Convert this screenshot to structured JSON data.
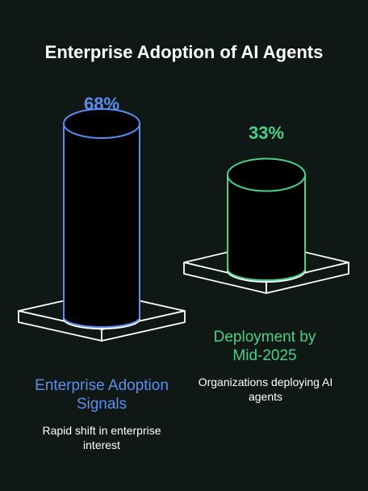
{
  "chart_data": {
    "type": "bar",
    "title": "Enterprise Adoption of AI Agents",
    "categories": [
      "Enterprise Adoption Signals",
      "Deployment by Mid-2025"
    ],
    "values": [
      68,
      33
    ],
    "value_labels": [
      "68%",
      "33%"
    ],
    "descriptions": [
      "Rapid shift in enterprise interest",
      "Organizations deploying AI agents"
    ],
    "unit": "%",
    "colors": [
      "#5b8def",
      "#49d08a"
    ],
    "ylim": [
      0,
      100
    ]
  }
}
